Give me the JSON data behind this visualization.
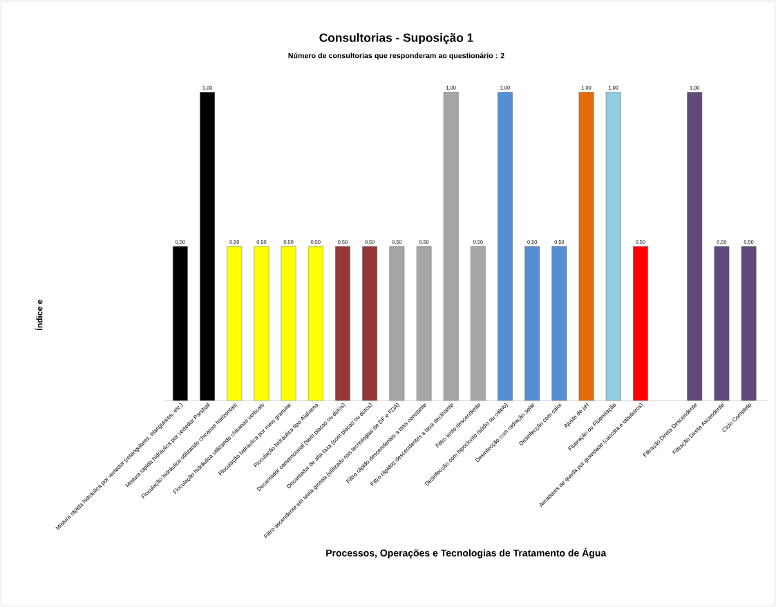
{
  "chart_data": {
    "type": "bar",
    "title": "Consultorias - Suposição 1",
    "subtitle": "Número  de consultorias que responderam ao questionário : 2",
    "xlabel": "Processos, Operações e Tecnologias de Tratamento de Água",
    "ylabel": "Índice e",
    "categories": [
      "Mistura rápida hidráulica por vertedor (retangulares, triangulares, etc.)",
      "Mistura rápida hidráulica por vertedor Parshall",
      "Floculação hidráulica utilizando chicanas horizontais",
      "Floculação hidráulica utilizando chicanas verticais",
      "Floculação hidráulica por meio granular",
      "Floculação hidráulica tipo Alabama",
      "Decantador convencional (sem placas ou dutos)",
      "Decantador de alta taxa (com placas ou dutos)",
      "Filtro ascendente em areia grossa (utilizado nas tecnologias de DF e FDA)",
      "Filtro rápido descendentes a taxa constante",
      "Filtro rápidos descendentes a taxa declinante",
      "Filtro lento descendente",
      "Desinfecção com hipoclorito (sódio ou cálcio)",
      "Desinfecção com radiação solar",
      "Desinfecção com calor",
      "Ajuste de pH",
      "Fluoração ou Fluoretação",
      "Aeradores de queda por gravidade (cascata e tabuleiros)",
      null,
      "Filtração Direta Descendente",
      "Filtração Direta Ascendente",
      "Ciclo Completo"
    ],
    "values": [
      0.5,
      1.0,
      0.5,
      0.5,
      0.5,
      0.5,
      0.5,
      0.5,
      0.5,
      0.5,
      1.0,
      0.5,
      1.0,
      0.5,
      0.5,
      1.0,
      1.0,
      0.5,
      null,
      1.0,
      0.5,
      0.5
    ],
    "value_labels": [
      "0,50",
      "1,00",
      "0,50",
      "0,50",
      "0,50",
      "0,50",
      "0,50",
      "0,50",
      "0,50",
      "0,50",
      "1,00",
      "0,50",
      "1,00",
      "0,50",
      "0,50",
      "1,00",
      "1,00",
      "0,50",
      null,
      "1,00",
      "0,50",
      "0,50"
    ],
    "colors": [
      "#000000",
      "#000000",
      "#ffff00",
      "#ffff00",
      "#ffff00",
      "#ffff00",
      "#953735",
      "#953735",
      "#a6a6a6",
      "#a6a6a6",
      "#a6a6a6",
      "#a6a6a6",
      "#558ed5",
      "#558ed5",
      "#558ed5",
      "#e46c0a",
      "#93cddd",
      "#ff0000",
      "#604a7b",
      "#604a7b",
      "#604a7b",
      "#604a7b"
    ],
    "ylim": [
      0,
      1
    ],
    "grid": false
  }
}
